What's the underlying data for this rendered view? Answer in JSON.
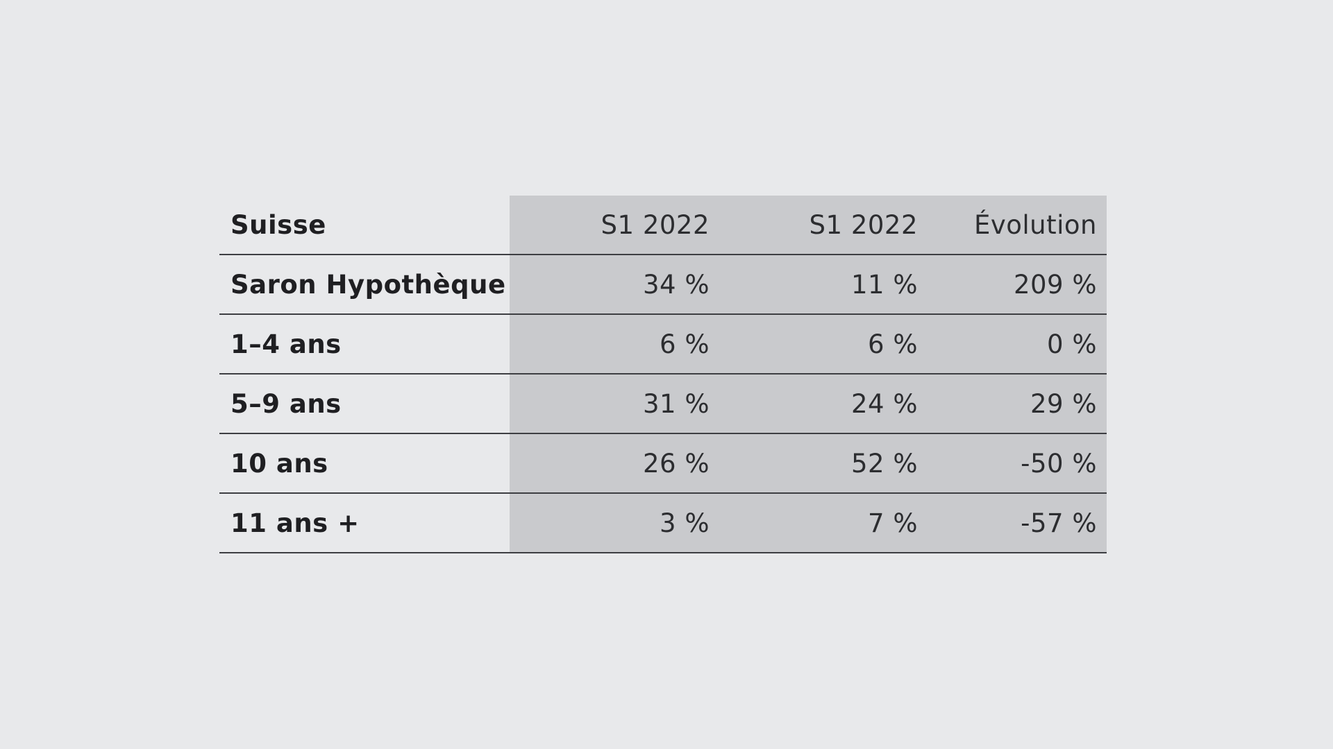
{
  "colors": {
    "background": "#e8e9eb",
    "shaded_columns": "#c9cacd",
    "rule": "#3d3e42",
    "text": "#1f1f22"
  },
  "chart_data": {
    "type": "table",
    "columns": [
      "Suisse",
      "S1 2022",
      "S1 2022",
      "Évolution"
    ],
    "rows": [
      {
        "label": "Saron Hypothèque",
        "values": [
          "34 %",
          "11 %",
          "209 %"
        ]
      },
      {
        "label": "1–4 ans",
        "values": [
          "6 %",
          "6 %",
          "0 %"
        ]
      },
      {
        "label": "5–9 ans",
        "values": [
          "31 %",
          "24 %",
          "29 %"
        ]
      },
      {
        "label": "10 ans",
        "values": [
          "26 %",
          "52 %",
          "-50 %"
        ]
      },
      {
        "label": "11 ans +",
        "values": [
          "3 %",
          "7 %",
          "-57 %"
        ]
      }
    ],
    "numeric": {
      "Saron Hypothèque": [
        34,
        11,
        209
      ],
      "1–4 ans": [
        6,
        6,
        0
      ],
      "5–9 ans": [
        31,
        24,
        29
      ],
      "10 ans": [
        26,
        52,
        -50
      ],
      "11 ans +": [
        3,
        7,
        -57
      ]
    }
  }
}
